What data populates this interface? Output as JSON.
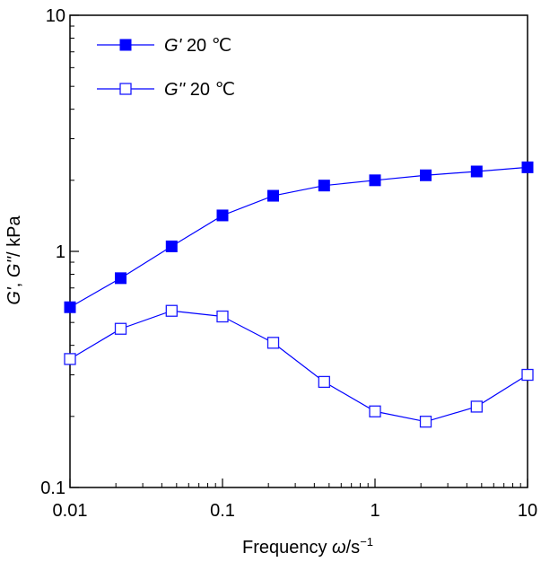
{
  "chart_data": {
    "type": "line",
    "xscale": "log",
    "yscale": "log",
    "xlim": [
      0.01,
      10
    ],
    "ylim": [
      0.1,
      10
    ],
    "x_ticks": [
      0.01,
      0.1,
      1,
      10
    ],
    "x_tick_labels": [
      "0.01",
      "0.1",
      "1",
      "10"
    ],
    "y_ticks": [
      0.1,
      1,
      10
    ],
    "y_tick_labels": [
      "0.1",
      "1",
      "10"
    ],
    "xlabel": {
      "main": "Frequency ",
      "symbol": "ω",
      "unit": "/s",
      "exponent": "−1"
    },
    "ylabel": {
      "g1": "G'",
      "sep": ", ",
      "g2": "G''",
      "unit": "/ kPa"
    },
    "grid": false,
    "legend_position": "top-left",
    "x": [
      0.01,
      0.0215,
      0.0464,
      0.1,
      0.215,
      0.464,
      1,
      2.15,
      4.64,
      10
    ],
    "series": [
      {
        "name": "G' 20 °C",
        "symbol": "G'",
        "label": "20 ℃",
        "marker": "filled-square",
        "color": "#0000ff",
        "values": [
          0.58,
          0.77,
          1.05,
          1.42,
          1.72,
          1.9,
          2.0,
          2.1,
          2.18,
          2.27
        ]
      },
      {
        "name": "G'' 20 °C",
        "symbol": "G''",
        "label": "20 ℃",
        "marker": "open-square",
        "color": "#0000ff",
        "values": [
          0.35,
          0.47,
          0.56,
          0.53,
          0.41,
          0.28,
          0.21,
          0.19,
          0.22,
          0.3
        ]
      }
    ]
  }
}
